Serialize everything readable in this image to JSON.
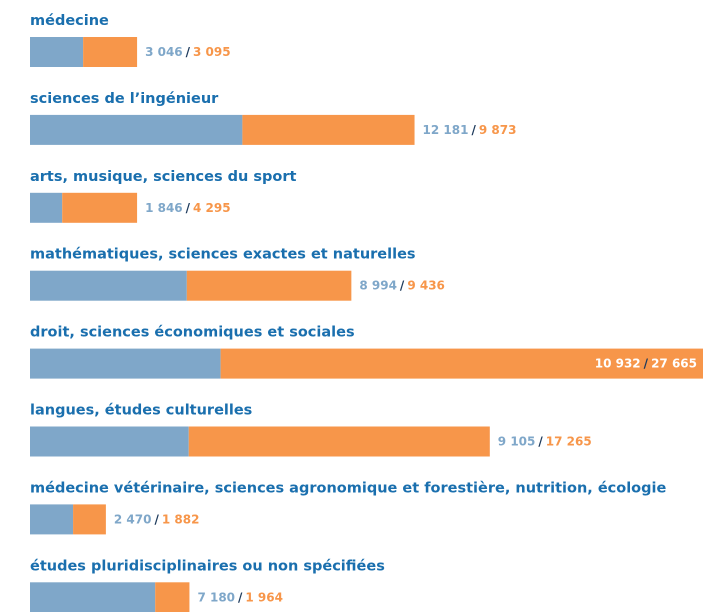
{
  "chart_data": {
    "type": "bar",
    "orientation": "horizontal",
    "stacked": true,
    "categories": [
      "médecine",
      "sciences de l’ingénieur",
      "arts, musique, sciences du sport",
      "mathématiques, sciences exactes et naturelles",
      "droit, sciences économiques et sociales",
      "langues, études culturelles",
      "médecine vétérinaire, sciences agronomique et forestière, nutrition, écologie",
      "études pluridisciplinaires ou non spécifiées"
    ],
    "separator": "/",
    "series": [
      {
        "color": "#7fa7c9",
        "values": [
          3046,
          12181,
          1846,
          8994,
          10932,
          9105,
          2470,
          7180
        ],
        "value_labels": [
          "3 046",
          "12 181",
          "1 846",
          "8 994",
          "10 932",
          "9 105",
          "2 470",
          "7 180"
        ]
      },
      {
        "color": "#f7964a",
        "values": [
          3095,
          9873,
          4295,
          9436,
          27665,
          17265,
          1882,
          1964
        ],
        "value_labels": [
          "3 095",
          "9 873",
          "4 295",
          "9 436",
          "27 665",
          "17 265",
          "1 882",
          "1 964"
        ]
      }
    ]
  }
}
